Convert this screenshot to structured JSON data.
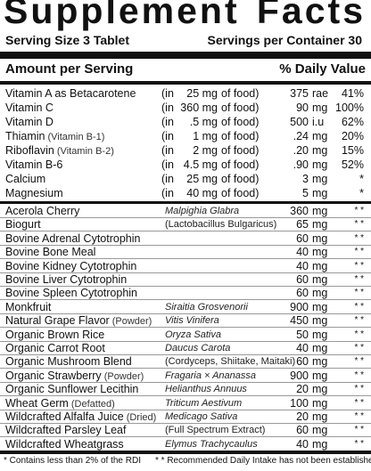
{
  "title": {
    "word1": "Supplement",
    "word2": "Facts"
  },
  "serving": {
    "size": "Serving Size 3 Tablet",
    "per_container": "Servings per Container 30"
  },
  "header": {
    "amount": "Amount per Serving",
    "dv": "% Daily Value"
  },
  "vitamins": [
    {
      "name": "Vitamin A as Betacarotene",
      "note": "",
      "in_open": "(in",
      "amount": "25 mg",
      "of_food": "of food)",
      "value": "375",
      "unit": "rae",
      "dv": "41%"
    },
    {
      "name": "Vitamin C",
      "note": "",
      "in_open": "(in",
      "amount": "360 mg",
      "of_food": "of food)",
      "value": "90",
      "unit": "mg",
      "dv": "100%"
    },
    {
      "name": "Vitamin D",
      "note": "",
      "in_open": "(in",
      "amount": ".5 mg",
      "of_food": "of food)",
      "value": "500",
      "unit": "i.u",
      "dv": "62%"
    },
    {
      "name": "Thiamin",
      "note": "(Vitamin B-1)",
      "in_open": "(in",
      "amount": "1 mg",
      "of_food": "of food)",
      "value": ".24",
      "unit": "mg",
      "dv": "20%"
    },
    {
      "name": "Riboflavin",
      "note": "(Vitamin B-2)",
      "in_open": "(in",
      "amount": "2 mg",
      "of_food": "of food)",
      "value": ".20",
      "unit": "mg",
      "dv": "15%"
    },
    {
      "name": "Vitamin B-6",
      "note": "",
      "in_open": "(in",
      "amount": "4.5 mg",
      "of_food": "of food)",
      "value": ".90",
      "unit": "mg",
      "dv": "52%"
    },
    {
      "name": "Calcium",
      "note": "",
      "in_open": "(in",
      "amount": "25 mg",
      "of_food": "of food)",
      "value": "3",
      "unit": "mg",
      "dv": "*"
    },
    {
      "name": "Magnesium",
      "note": "",
      "in_open": "(in",
      "amount": "40 mg",
      "of_food": "of food)",
      "value": "5",
      "unit": "mg",
      "dv": "*"
    }
  ],
  "blend": [
    {
      "name": "Acerola Cherry",
      "note": "",
      "source": "Malpighia Glabra",
      "italic": true,
      "value": "360",
      "unit": "mg",
      "dv": "* *"
    },
    {
      "name": "Biogurt",
      "note": "",
      "source": "(Lactobacillus Bulgaricus)",
      "italic": false,
      "value": "65",
      "unit": "mg",
      "dv": "* *"
    },
    {
      "name": "Bovine Adrenal Cytotrophin",
      "note": "",
      "source": "",
      "italic": false,
      "value": "60",
      "unit": "mg",
      "dv": "* *"
    },
    {
      "name": "Bovine Bone Meal",
      "note": "",
      "source": "",
      "italic": false,
      "value": "40",
      "unit": "mg",
      "dv": "* *"
    },
    {
      "name": "Bovine Kidney Cytotrophin",
      "note": "",
      "source": "",
      "italic": false,
      "value": "40",
      "unit": "mg",
      "dv": "* *"
    },
    {
      "name": "Bovine Liver Cytotrophin",
      "note": "",
      "source": "",
      "italic": false,
      "value": "60",
      "unit": "mg",
      "dv": "* *"
    },
    {
      "name": "Bovine Spleen Cytotrophin",
      "note": "",
      "source": "",
      "italic": false,
      "value": "60",
      "unit": "mg",
      "dv": "* *"
    },
    {
      "name": "Monkfruit",
      "note": "",
      "source": "Siraitia Grosvenorii",
      "italic": true,
      "value": "900",
      "unit": "mg",
      "dv": "* *"
    },
    {
      "name": "Natural Grape Flavor",
      "note": "(Powder)",
      "source": "Vitis Vinifera",
      "italic": true,
      "value": "450",
      "unit": "mg",
      "dv": "* *"
    },
    {
      "name": "Organic Brown Rice",
      "note": "",
      "source": "Oryza Sativa",
      "italic": true,
      "value": "50",
      "unit": "mg",
      "dv": "* *"
    },
    {
      "name": "Organic Carrot Root",
      "note": "",
      "source": "Daucus Carota",
      "italic": true,
      "value": "40",
      "unit": "mg",
      "dv": "* *"
    },
    {
      "name": "Organic Mushroom Blend",
      "note": "",
      "source": "(Cordyceps, Shiitake, Maitaki)",
      "italic": false,
      "value": "60",
      "unit": "mg",
      "dv": "* *"
    },
    {
      "name": "Organic Strawberry",
      "note": "(Powder)",
      "source": "Fragaria × Ananassa",
      "italic": true,
      "value": "900",
      "unit": "mg",
      "dv": "* *"
    },
    {
      "name": "Organic Sunflower Lecithin",
      "note": "",
      "source": "Helianthus Annuus",
      "italic": true,
      "value": "20",
      "unit": "mg",
      "dv": "* *"
    },
    {
      "name": "Wheat Germ",
      "note": "(Defatted)",
      "source": "Triticum Aestivum",
      "italic": true,
      "value": "100",
      "unit": "mg",
      "dv": "* *"
    },
    {
      "name": "Wildcrafted Alfalfa Juice",
      "note": "(Dried)",
      "source": "Medicago Sativa",
      "italic": true,
      "value": "20",
      "unit": "mg",
      "dv": "* *"
    },
    {
      "name": "Wildcrafted Parsley Leaf",
      "note": "",
      "source": "(Full Spectrum Extract)",
      "italic": false,
      "value": "60",
      "unit": "mg",
      "dv": "* *"
    },
    {
      "name": "Wildcrafted Wheatgrass",
      "note": "",
      "source": "Elymus Trachycaulus",
      "italic": true,
      "value": "40",
      "unit": "mg",
      "dv": "* *"
    }
  ],
  "footnotes": {
    "rdi": "* Contains less than 2% of the RDI",
    "not_established": "* * Recommended Daily Intake has not been established"
  }
}
